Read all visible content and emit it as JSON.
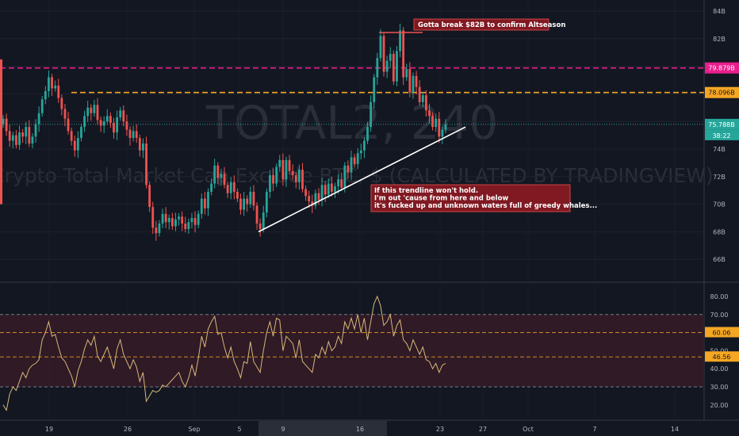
{
  "chart_data": [
    {
      "type": "candlestick",
      "watermark": {
        "symbol": "TOTAL2, 240",
        "description": "Crypto Total Market Cap Exclude BTC, $ (CALCULATED BY TRADINGVIEW)"
      },
      "y_axis": {
        "ticks": [
          "84B",
          "82B",
          "80B",
          "78B",
          "76B",
          "74B",
          "72B",
          "70B",
          "68B",
          "66B"
        ],
        "range": [
          65.5,
          84.5
        ]
      },
      "x_axis": {
        "ticks": [
          "19",
          "26",
          "Sep",
          "5",
          "9",
          "16",
          "23",
          "27",
          "Oct",
          "7",
          "14"
        ],
        "highlighted_range": [
          "9",
          "16"
        ]
      },
      "levels": [
        {
          "label": "79.879B",
          "value": 79.879,
          "color": "#e91e8c",
          "style": "dashed"
        },
        {
          "label": "78.096B",
          "value": 78.096,
          "color": "#f5a623",
          "style": "dashed"
        },
        {
          "label": "75.788B",
          "value": 75.788,
          "color": "#26a69a",
          "style": "dotted"
        }
      ],
      "countdown": "38:22",
      "annotations": [
        {
          "lines": [
            "Gotta break $82B to confirm Altseason"
          ]
        },
        {
          "lines": [
            "If this trendline won't hold.",
            "I'm out 'cause from here and below",
            "it's fucked up and unknown waters full of greedy whales..."
          ]
        }
      ],
      "trendline": {
        "from": [
          9,
          68.0
        ],
        "to": [
          23.5,
          75.6
        ]
      },
      "series_close": [
        76.2,
        75.3,
        74.6,
        75.0,
        74.3,
        75.2,
        74.9,
        75.6,
        74.4,
        74.9,
        75.8,
        76.6,
        77.6,
        78.2,
        79.2,
        78.4,
        78.6,
        77.7,
        76.9,
        76.2,
        75.3,
        74.6,
        73.9,
        74.8,
        75.6,
        76.4,
        77.0,
        76.6,
        77.2,
        76.1,
        75.7,
        76.0,
        76.4,
        75.9,
        75.2,
        76.3,
        76.8,
        76.0,
        75.4,
        74.8,
        75.3,
        74.8,
        73.9,
        74.4,
        71.4,
        69.8,
        68.3,
        67.9,
        68.6,
        69.3,
        68.7,
        69.0,
        68.4,
        68.9,
        69.1,
        68.6,
        68.2,
        68.7,
        69.0,
        68.5,
        69.3,
        70.4,
        69.7,
        70.9,
        71.5,
        72.8,
        71.9,
        72.2,
        71.4,
        70.8,
        71.6,
        70.9,
        70.4,
        69.6,
        70.4,
        70.0,
        70.9,
        69.9,
        68.6,
        68.2,
        69.4,
        70.9,
        72.1,
        71.5,
        72.7,
        73.2,
        71.8,
        73.2,
        72.4,
        72.1,
        71.6,
        72.5,
        71.1,
        70.6,
        70.2,
        69.9,
        70.8,
        70.3,
        71.4,
        70.7,
        71.5,
        70.9,
        71.3,
        71.8,
        71.2,
        72.8,
        72.3,
        73.4,
        72.9,
        73.7,
        73.9,
        74.6,
        75.6,
        77.4,
        79.2,
        80.6,
        82.2,
        79.6,
        80.4,
        80.9,
        78.9,
        81.1,
        82.6,
        79.2,
        79.8,
        78.1,
        79.3,
        78.5,
        77.4,
        77.9,
        76.8,
        76.4,
        75.6,
        76.2,
        74.9,
        75.4,
        75.8
      ],
      "rsi": {
        "ticks": [
          "80.00",
          "70.00",
          "60.00",
          "50.00",
          "40.00",
          "30.00",
          "20.00"
        ],
        "range": [
          14,
          83
        ],
        "bands": [
          70,
          30
        ],
        "tags": [
          {
            "label": "60.06",
            "value": 60.06
          },
          {
            "label": "46.56",
            "value": 46.56
          }
        ],
        "values": [
          20,
          17,
          26,
          30,
          28,
          33,
          38,
          35,
          40,
          42,
          43,
          45,
          56,
          60,
          66,
          58,
          59,
          52,
          46,
          44,
          40,
          36,
          30,
          39,
          44,
          51,
          56,
          53,
          58,
          47,
          44,
          48,
          52,
          46,
          40,
          51,
          56,
          48,
          44,
          40,
          45,
          41,
          33,
          38,
          22,
          25,
          28,
          27,
          28,
          31,
          30,
          32,
          34,
          36,
          38,
          33,
          30,
          35,
          42,
          36,
          46,
          58,
          52,
          62,
          66,
          69,
          59,
          60,
          52,
          46,
          52,
          44,
          40,
          35,
          44,
          43,
          55,
          44,
          41,
          38,
          50,
          60,
          66,
          58,
          68,
          67,
          50,
          58,
          56,
          54,
          46,
          56,
          44,
          42,
          40,
          38,
          48,
          46,
          52,
          48,
          55,
          50,
          52,
          58,
          54,
          66,
          62,
          68,
          62,
          70,
          60,
          68,
          56,
          66,
          76,
          80,
          75,
          64,
          66,
          70,
          58,
          64,
          67,
          56,
          54,
          50,
          56,
          52,
          48,
          52,
          45,
          44,
          40,
          43,
          38,
          42,
          43
        ]
      }
    }
  ]
}
